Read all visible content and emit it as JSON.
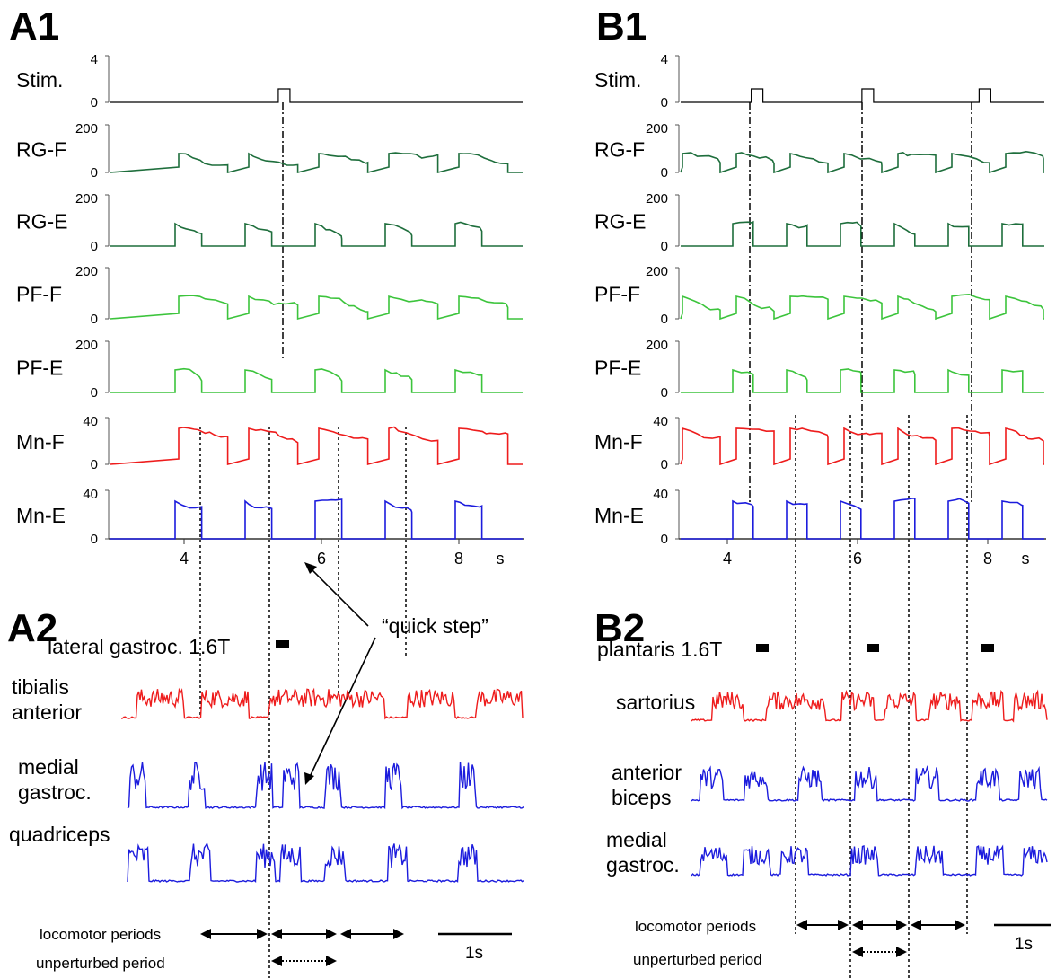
{
  "figure": {
    "panels": {
      "a1": "A1",
      "b1": "B1",
      "a2": "A2",
      "b2": "B2"
    },
    "axis_unit": "s",
    "scale_bar": "1s",
    "annotation": "“quick step”",
    "locomotor_periods": "locomotor periods",
    "unperturbed_period": "unperturbed period"
  },
  "colors": {
    "stim": "#000000",
    "rg": "#1e6e3c",
    "pf": "#3cc43c",
    "mn_f": "#ee1c1c",
    "mn_e": "#1c1cdd"
  },
  "chart_data": [
    {
      "type": "line",
      "panel": "A1",
      "xticks": [
        "4",
        "6",
        "8"
      ],
      "xlim": [
        3,
        9.5
      ],
      "xunit": "s",
      "stim_onsets": [
        5.45
      ],
      "rows": [
        {
          "name": "Stim.",
          "ymax_label": "4",
          "ymin_label": "0",
          "ylim": [
            0,
            4
          ]
        },
        {
          "name": "RG-F",
          "ymax_label": "200",
          "ymin_label": "0",
          "ylim": [
            0,
            200
          ]
        },
        {
          "name": "RG-E",
          "ymax_label": "200",
          "ymin_label": "0",
          "ylim": [
            0,
            200
          ]
        },
        {
          "name": "PF-F",
          "ymax_label": "200",
          "ymin_label": "0",
          "ylim": [
            0,
            200
          ]
        },
        {
          "name": "PF-E",
          "ymax_label": "200",
          "ymin_label": "0",
          "ylim": [
            0,
            200
          ]
        },
        {
          "name": "Mn-F",
          "ymax_label": "40",
          "ymin_label": "0",
          "ylim": [
            0,
            40
          ]
        },
        {
          "name": "Mn-E",
          "ymax_label": "40",
          "ymin_label": "0",
          "ylim": [
            0,
            40
          ]
        }
      ]
    },
    {
      "type": "line",
      "panel": "B1",
      "xticks": [
        "4",
        "6",
        "8"
      ],
      "xlim": [
        3,
        9.5
      ],
      "xunit": "s",
      "stim_onsets": [
        4.45,
        6.15,
        7.95
      ],
      "rows": [
        {
          "name": "Stim.",
          "ymax_label": "4",
          "ymin_label": "0",
          "ylim": [
            0,
            4
          ]
        },
        {
          "name": "RG-F",
          "ymax_label": "200",
          "ymin_label": "0",
          "ylim": [
            0,
            200
          ]
        },
        {
          "name": "RG-E",
          "ymax_label": "200",
          "ymin_label": "0",
          "ylim": [
            0,
            200
          ]
        },
        {
          "name": "PF-F",
          "ymax_label": "200",
          "ymin_label": "0",
          "ylim": [
            0,
            200
          ]
        },
        {
          "name": "PF-E",
          "ymax_label": "200",
          "ymin_label": "0",
          "ylim": [
            0,
            200
          ]
        },
        {
          "name": "Mn-F",
          "ymax_label": "40",
          "ymin_label": "0",
          "ylim": [
            0,
            40
          ]
        },
        {
          "name": "Mn-E",
          "ymax_label": "40",
          "ymin_label": "0",
          "ylim": [
            0,
            40
          ]
        }
      ]
    },
    {
      "type": "line",
      "panel": "A2",
      "stimulus": "lateral gastroc. 1.6T",
      "traces": [
        {
          "name": "tibialis\nanterior",
          "color": "#ee1c1c"
        },
        {
          "name": "medial\ngastroc.",
          "color": "#1c1cdd"
        },
        {
          "name": "quadriceps",
          "color": "#1c1cdd"
        }
      ]
    },
    {
      "type": "line",
      "panel": "B2",
      "stimulus": "plantaris 1.6T",
      "traces": [
        {
          "name": "sartorius",
          "color": "#ee1c1c"
        },
        {
          "name": "anterior\nbiceps",
          "color": "#1c1cdd"
        },
        {
          "name": "medial\ngastroc.",
          "color": "#1c1cdd"
        }
      ]
    }
  ]
}
